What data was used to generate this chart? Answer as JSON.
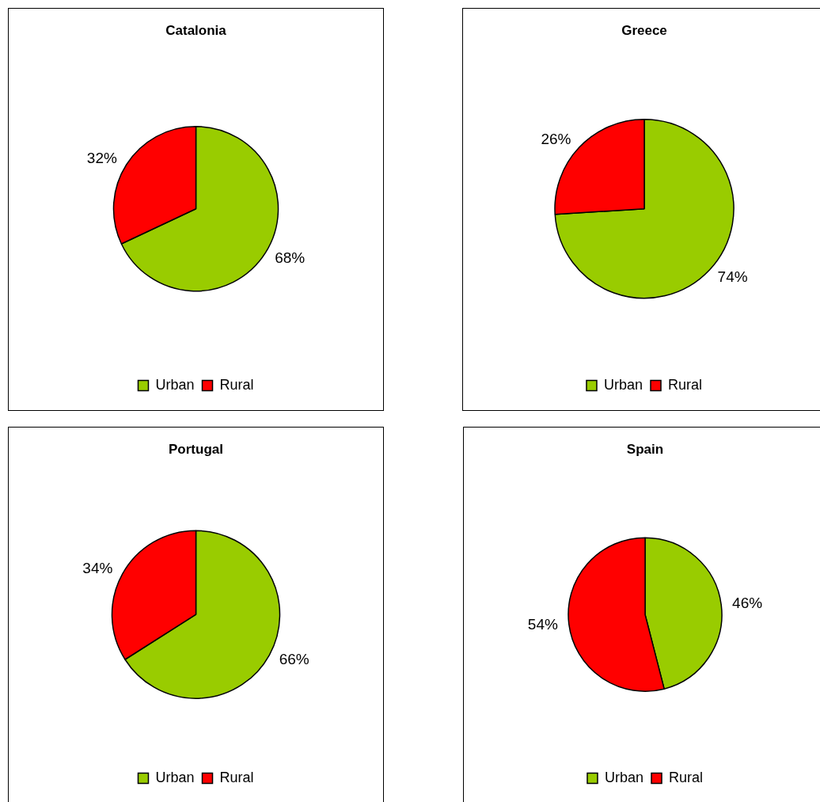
{
  "chart_data": [
    {
      "type": "pie",
      "title": "Catalonia",
      "categories": [
        "Urban",
        "Rural"
      ],
      "values": [
        68,
        32
      ],
      "colors": [
        "#99cc00",
        "#ff0000"
      ],
      "value_labels": [
        "68%",
        "32%"
      ],
      "legend": "bottom"
    },
    {
      "type": "pie",
      "title": "Greece",
      "categories": [
        "Urban",
        "Rural"
      ],
      "values": [
        74,
        26
      ],
      "colors": [
        "#99cc00",
        "#ff0000"
      ],
      "value_labels": [
        "74%",
        "26%"
      ],
      "legend": "bottom"
    },
    {
      "type": "pie",
      "title": "Portugal",
      "categories": [
        "Urban",
        "Rural"
      ],
      "values": [
        66,
        34
      ],
      "colors": [
        "#99cc00",
        "#ff0000"
      ],
      "value_labels": [
        "66%",
        "34%"
      ],
      "legend": "bottom"
    },
    {
      "type": "pie",
      "title": "Spain",
      "categories": [
        "Urban",
        "Rural"
      ],
      "values": [
        46,
        54
      ],
      "colors": [
        "#99cc00",
        "#ff0000"
      ],
      "value_labels": [
        "46%",
        "54%"
      ],
      "legend": "bottom"
    }
  ]
}
